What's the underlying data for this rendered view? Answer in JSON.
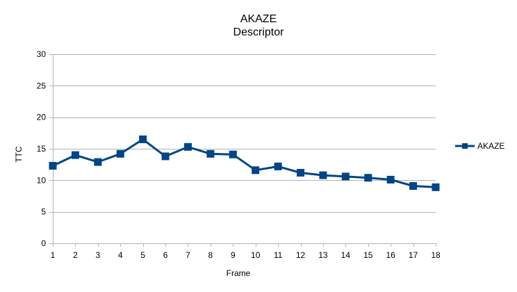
{
  "chart_data": {
    "type": "line",
    "title": "AKAZE",
    "subtitle": "Descriptor",
    "xlabel": "Frame",
    "ylabel": "TTC",
    "x": [
      1,
      2,
      3,
      4,
      5,
      6,
      7,
      8,
      9,
      10,
      11,
      12,
      13,
      14,
      15,
      16,
      17,
      18
    ],
    "ylim": [
      0,
      30
    ],
    "yticks": [
      0,
      5,
      10,
      15,
      20,
      25,
      30
    ],
    "grid": true,
    "legend_position": "right",
    "series": [
      {
        "name": "AKAZE",
        "color": "#004586",
        "marker": "square",
        "values": [
          12.3,
          14.0,
          12.9,
          14.2,
          16.5,
          13.8,
          15.3,
          14.2,
          14.1,
          11.6,
          12.2,
          11.2,
          10.8,
          10.6,
          10.4,
          10.1,
          9.1,
          8.9
        ]
      }
    ]
  }
}
